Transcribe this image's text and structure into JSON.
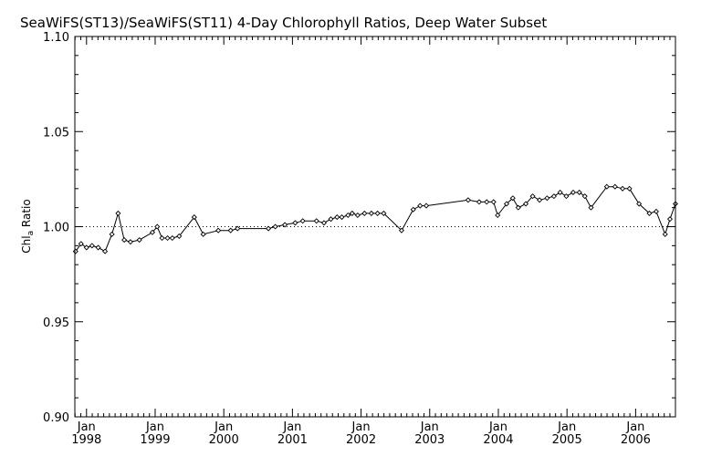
{
  "chart_data": {
    "type": "line",
    "title": "SeaWiFS(ST13)/SeaWiFS(ST11) 4-Day Chlorophyll Ratios, Deep Water Subset",
    "ylabel_main": "Chl",
    "ylabel_sub": "a",
    "ylabel_tail": " Ratio",
    "xlabel": "",
    "ylim": [
      0.9,
      1.1
    ],
    "xlim": [
      1997.83,
      2006.58
    ],
    "y_ticks": [
      "0.90",
      "0.95",
      "1.00",
      "1.05",
      "1.10"
    ],
    "x_ticks": [
      {
        "month": "Jan",
        "year": "1998",
        "value": 1998.0
      },
      {
        "month": "Jan",
        "year": "1999",
        "value": 1999.0
      },
      {
        "month": "Jan",
        "year": "2000",
        "value": 2000.0
      },
      {
        "month": "Jan",
        "year": "2001",
        "value": 2001.0
      },
      {
        "month": "Jan",
        "year": "2002",
        "value": 2002.0
      },
      {
        "month": "Jan",
        "year": "2003",
        "value": 2003.0
      },
      {
        "month": "Jan",
        "year": "2004",
        "value": 2004.0
      },
      {
        "month": "Jan",
        "year": "2005",
        "value": 2005.0
      },
      {
        "month": "Jan",
        "year": "2006",
        "value": 2006.0
      }
    ],
    "reference_line": 1.0,
    "grid": false,
    "series": [
      {
        "x": [
          1997.84,
          1997.92,
          1998.0,
          1998.08,
          1998.17,
          1998.27,
          1998.37,
          1998.46,
          1998.55,
          1998.64,
          1998.77,
          1998.96,
          1999.03,
          1999.1,
          1999.18,
          1999.25,
          1999.35,
          1999.57,
          1999.7,
          1999.92,
          2000.1,
          2000.2,
          2000.65,
          2000.75,
          2000.89,
          2001.04,
          2001.15,
          2001.35,
          2001.46,
          2001.56,
          2001.65,
          2001.72,
          2001.81,
          2001.87,
          2001.95,
          2002.05,
          2002.15,
          2002.24,
          2002.33,
          2002.59,
          2002.76,
          2002.86,
          2002.95,
          2003.56,
          2003.72,
          2003.83,
          2003.93,
          2003.99,
          2004.12,
          2004.21,
          2004.29,
          2004.4,
          2004.5,
          2004.6,
          2004.71,
          2004.81,
          2004.9,
          2004.99,
          2005.09,
          2005.18,
          2005.26,
          2005.35,
          2005.58,
          2005.7,
          2005.81,
          2005.91,
          2006.05,
          2006.2,
          2006.3,
          2006.43,
          2006.5,
          2006.58
        ],
        "y": [
          0.987,
          0.991,
          0.989,
          0.99,
          0.989,
          0.987,
          0.996,
          1.007,
          0.993,
          0.992,
          0.993,
          0.997,
          1.0,
          0.994,
          0.994,
          0.994,
          0.995,
          1.005,
          0.996,
          0.998,
          0.998,
          0.999,
          0.999,
          1.0,
          1.001,
          1.002,
          1.003,
          1.003,
          1.002,
          1.004,
          1.005,
          1.005,
          1.006,
          1.007,
          1.006,
          1.007,
          1.007,
          1.007,
          1.007,
          0.998,
          1.009,
          1.011,
          1.011,
          1.014,
          1.013,
          1.013,
          1.013,
          1.006,
          1.012,
          1.015,
          1.01,
          1.012,
          1.016,
          1.014,
          1.015,
          1.016,
          1.018,
          1.016,
          1.018,
          1.018,
          1.016,
          1.01,
          1.021,
          1.021,
          1.02,
          1.02,
          1.012,
          1.007,
          1.008,
          0.996,
          1.004,
          1.012
        ]
      }
    ]
  }
}
